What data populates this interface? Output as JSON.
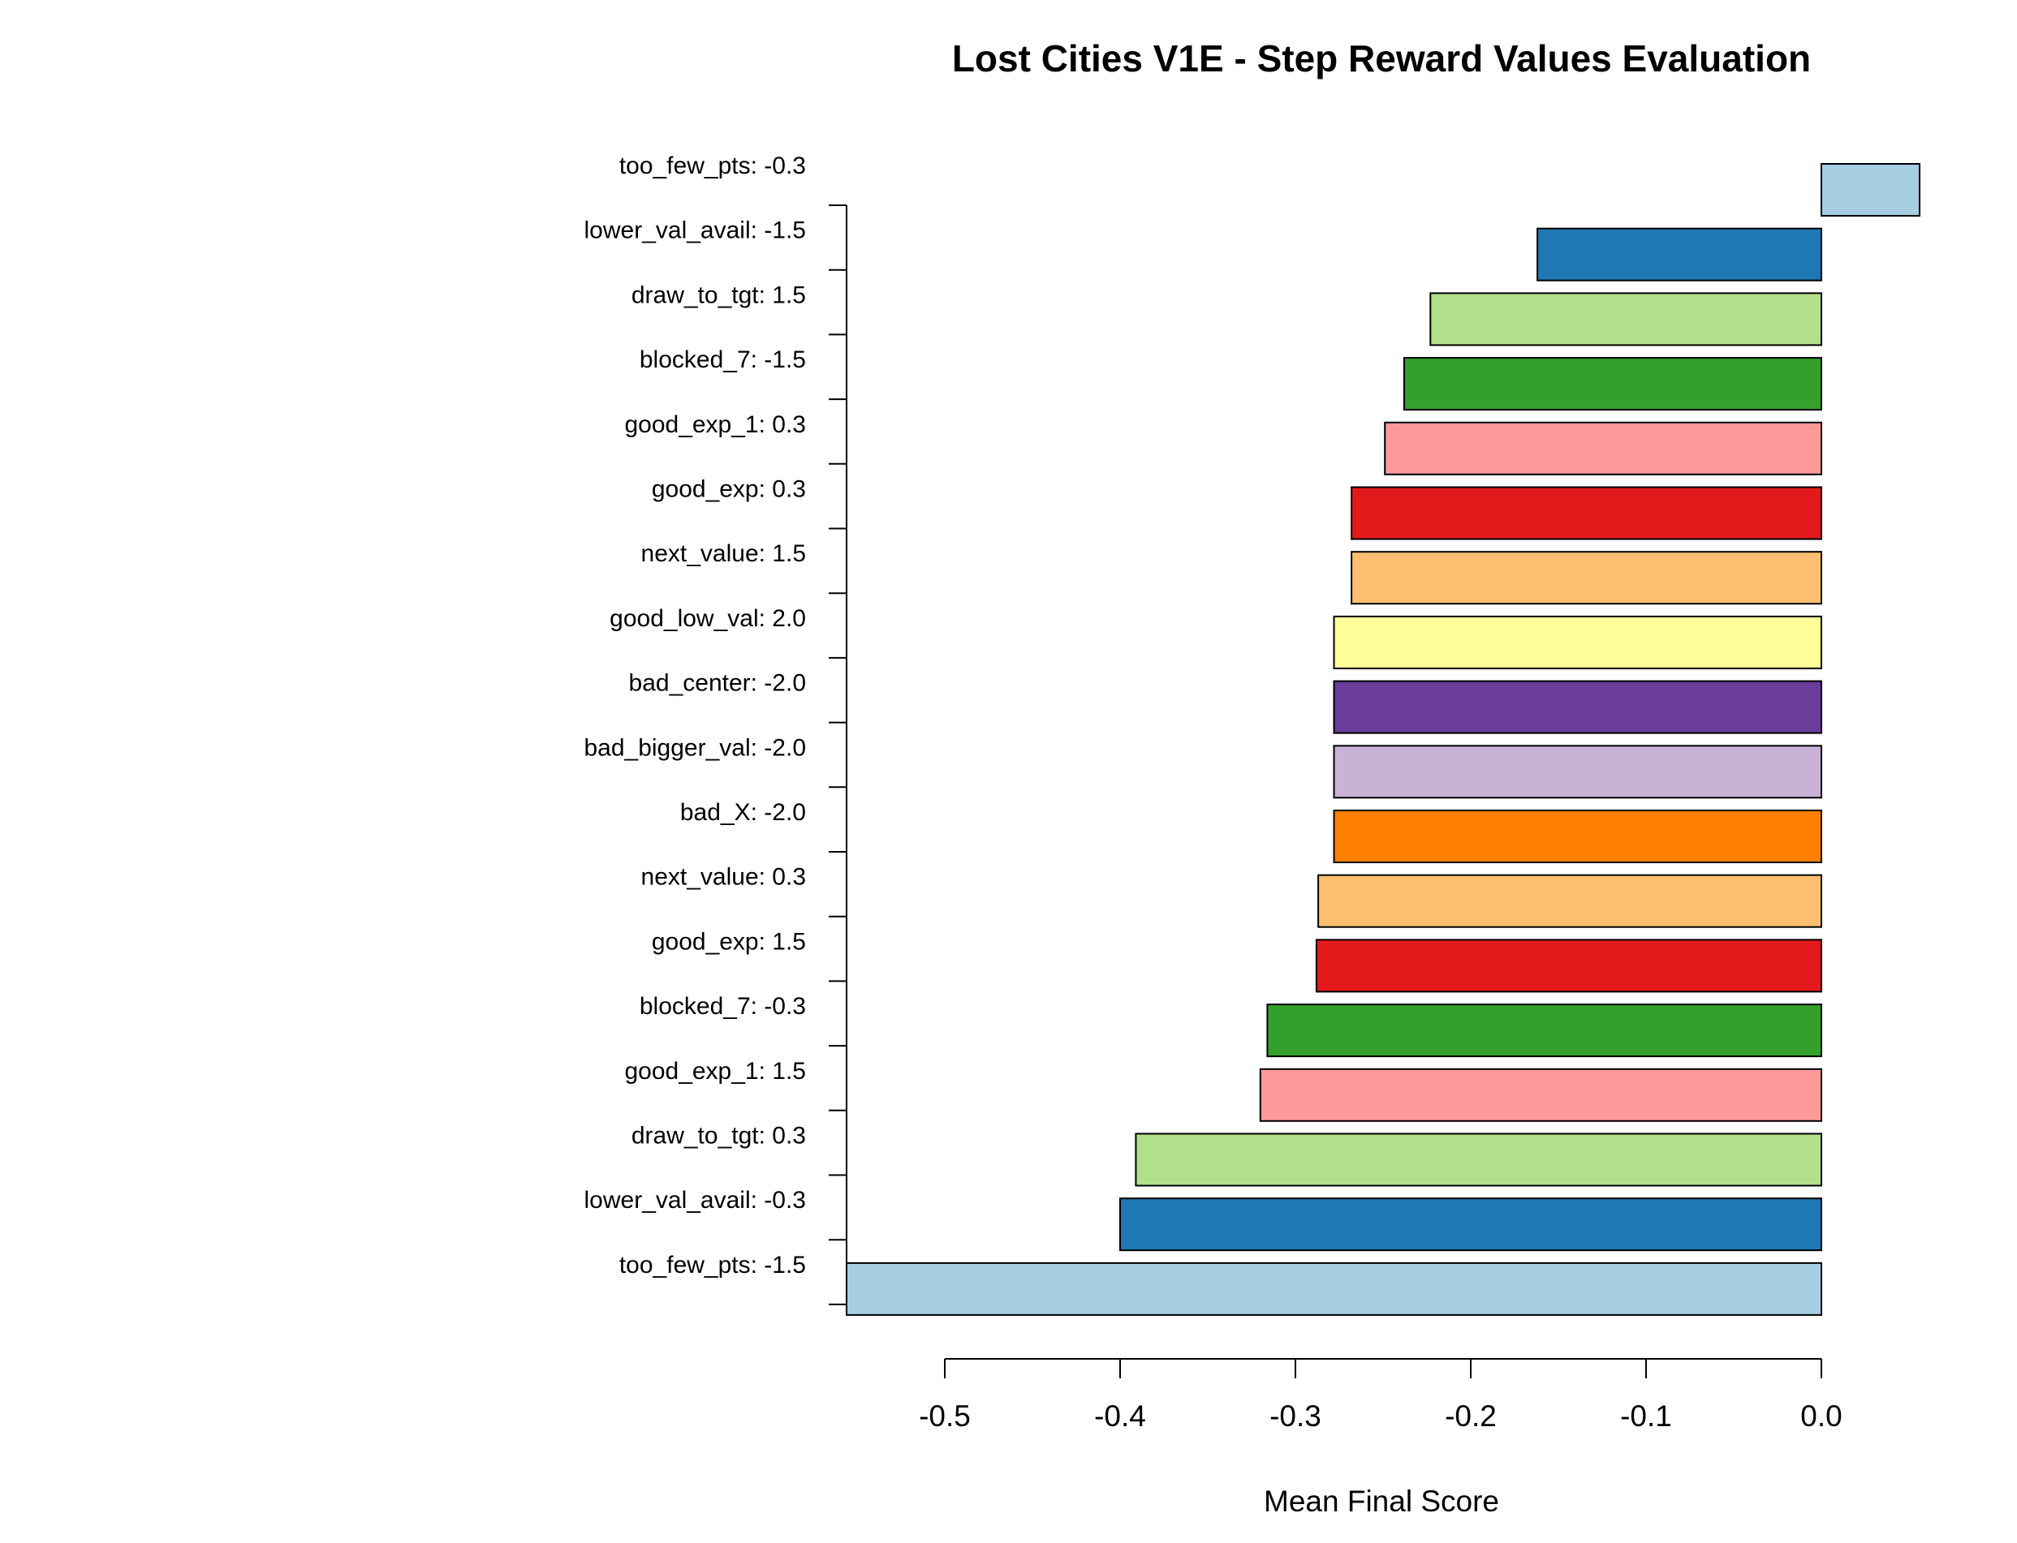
{
  "chart_data": {
    "type": "bar",
    "orientation": "horizontal",
    "title": "Lost Cities V1E - Step Reward Values Evaluation",
    "xlabel": "Mean Final Score",
    "ylabel": "",
    "xlim": [
      -0.556,
      0.056
    ],
    "xticks": [
      -0.5,
      -0.4,
      -0.3,
      -0.2,
      -0.1,
      0.0
    ],
    "xtick_labels": [
      "-0.5",
      "-0.4",
      "-0.3",
      "-0.2",
      "-0.1",
      "0.0"
    ],
    "grid": false,
    "legend": "none",
    "bars": [
      {
        "label": "too_few_pts: -0.3",
        "value": 0.056,
        "color": "#A6CEE3"
      },
      {
        "label": "lower_val_avail: -1.5",
        "value": -0.162,
        "color": "#1F78B4"
      },
      {
        "label": "draw_to_tgt: 1.5",
        "value": -0.223,
        "color": "#B2DF8A"
      },
      {
        "label": "blocked_7: -1.5",
        "value": -0.238,
        "color": "#33A02C"
      },
      {
        "label": "good_exp_1: 0.3",
        "value": -0.249,
        "color": "#FB9A99"
      },
      {
        "label": "good_exp: 0.3",
        "value": -0.268,
        "color": "#E31A1C"
      },
      {
        "label": "next_value: 1.5",
        "value": -0.268,
        "color": "#FDBF6F"
      },
      {
        "label": "good_low_val: 2.0",
        "value": -0.278,
        "color": "#FFFF99"
      },
      {
        "label": "bad_center: -2.0",
        "value": -0.278,
        "color": "#6A3D9A"
      },
      {
        "label": "bad_bigger_val: -2.0",
        "value": -0.278,
        "color": "#CAB2D6"
      },
      {
        "label": "bad_X: -2.0",
        "value": -0.278,
        "color": "#FF7F00"
      },
      {
        "label": "next_value: 0.3",
        "value": -0.287,
        "color": "#FDBF6F"
      },
      {
        "label": "good_exp: 1.5",
        "value": -0.288,
        "color": "#E31A1C"
      },
      {
        "label": "blocked_7: -0.3",
        "value": -0.316,
        "color": "#33A02C"
      },
      {
        "label": "good_exp_1: 1.5",
        "value": -0.32,
        "color": "#FB9A99"
      },
      {
        "label": "draw_to_tgt: 0.3",
        "value": -0.391,
        "color": "#B2DF8A"
      },
      {
        "label": "lower_val_avail: -0.3",
        "value": -0.4,
        "color": "#1F78B4"
      },
      {
        "label": "too_few_pts: -1.5",
        "value": -0.556,
        "color": "#A6CEE3"
      }
    ]
  }
}
